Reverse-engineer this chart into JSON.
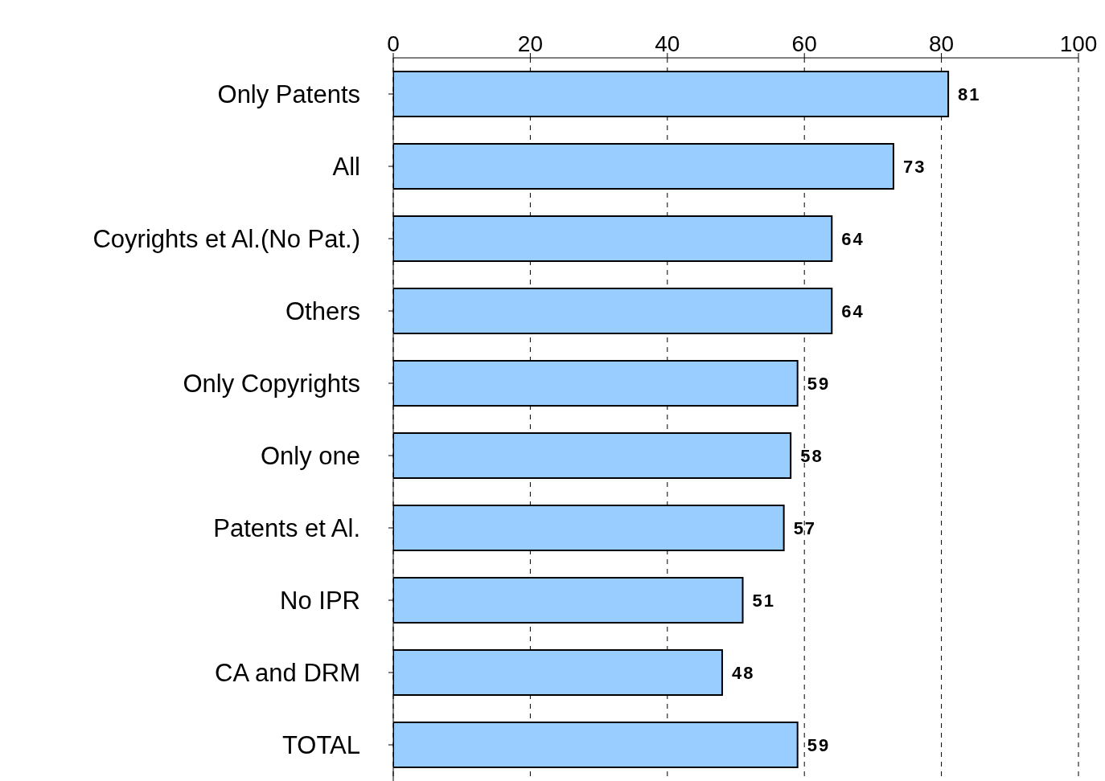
{
  "chart_data": {
    "type": "bar",
    "orientation": "horizontal",
    "categories": [
      "Only Patents",
      "All",
      "Coyrights et Al.(No Pat.)",
      "Others",
      "Only Copyrights",
      "Only one",
      "Patents et Al.",
      "No IPR",
      "CA and DRM",
      "TOTAL"
    ],
    "values": [
      81,
      73,
      64,
      64,
      59,
      58,
      57,
      51,
      48,
      59
    ],
    "color": "#99ccff",
    "xlim": [
      0,
      100
    ],
    "xticks": [
      0,
      20,
      40,
      60,
      80,
      100
    ],
    "grid": "x",
    "data_labels": true
  }
}
